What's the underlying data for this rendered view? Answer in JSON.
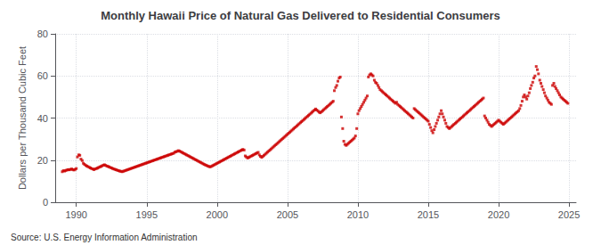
{
  "chart_data": {
    "type": "scatter",
    "title": "Monthly Hawaii Price of Natural Gas Delivered to Residential Consumers",
    "ylabel": "Dollars per Thousand Cubic Feet",
    "annotations": [
      "Source: U.S. Energy Information Administration"
    ],
    "color": "#cc0000",
    "marker": "square",
    "grid": true,
    "xlim": [
      1988.5,
      2025.5
    ],
    "xticks": [
      1990,
      1995,
      2000,
      2005,
      2010,
      2015,
      2020,
      2025
    ],
    "ylim": [
      0,
      80
    ],
    "yticks": [
      0,
      20,
      40,
      60,
      80
    ],
    "x": [
      1989.0,
      1989.08,
      1989.17,
      1989.25,
      1989.33,
      1989.42,
      1989.5,
      1989.58,
      1989.67,
      1989.75,
      1989.83,
      1989.92,
      1990.0,
      1990.08,
      1990.17,
      1990.25,
      1990.33,
      1990.42,
      1990.5,
      1990.58,
      1990.67,
      1990.75,
      1990.83,
      1990.92,
      1991.0,
      1991.08,
      1991.17,
      1991.25,
      1991.33,
      1991.42,
      1991.5,
      1991.58,
      1991.67,
      1991.75,
      1991.83,
      1991.92,
      1992.0,
      1992.08,
      1992.17,
      1992.25,
      1992.33,
      1992.42,
      1992.5,
      1992.58,
      1992.67,
      1992.75,
      1992.83,
      1992.92,
      1993.0,
      1993.08,
      1993.17,
      1993.25,
      1993.33,
      1993.42,
      1993.5,
      1993.58,
      1993.67,
      1993.75,
      1993.83,
      1993.92,
      1994.0,
      1994.08,
      1994.17,
      1994.25,
      1994.33,
      1994.42,
      1994.5,
      1994.58,
      1994.67,
      1994.75,
      1994.83,
      1994.92,
      1995.0,
      1995.08,
      1995.17,
      1995.25,
      1995.33,
      1995.42,
      1995.5,
      1995.58,
      1995.67,
      1995.75,
      1995.83,
      1995.92,
      1996.0,
      1996.08,
      1996.17,
      1996.25,
      1996.33,
      1996.42,
      1996.5,
      1996.58,
      1996.67,
      1996.75,
      1996.83,
      1996.92,
      1997.0,
      1997.08,
      1997.17,
      1997.25,
      1997.33,
      1997.42,
      1997.5,
      1997.58,
      1997.67,
      1997.75,
      1997.83,
      1997.92,
      1998.0,
      1998.08,
      1998.17,
      1998.25,
      1998.33,
      1998.42,
      1998.5,
      1998.58,
      1998.67,
      1998.75,
      1998.83,
      1998.92,
      1999.0,
      1999.08,
      1999.17,
      1999.25,
      1999.33,
      1999.42,
      1999.5,
      1999.58,
      1999.67,
      1999.75,
      1999.83,
      1999.92,
      2000.0,
      2000.08,
      2000.17,
      2000.25,
      2000.33,
      2000.42,
      2000.5,
      2000.58,
      2000.67,
      2000.75,
      2000.83,
      2000.92,
      2001.0,
      2001.08,
      2001.17,
      2001.25,
      2001.33,
      2001.42,
      2001.5,
      2001.58,
      2001.67,
      2001.75,
      2001.83,
      2001.92,
      2002.0,
      2002.08,
      2002.17,
      2002.25,
      2002.33,
      2002.42,
      2002.5,
      2002.58,
      2002.67,
      2002.75,
      2002.83,
      2002.92,
      2003.0,
      2003.08,
      2003.17,
      2003.25,
      2003.33,
      2003.42,
      2003.5,
      2003.58,
      2003.67,
      2003.75,
      2003.83,
      2003.92,
      2004.0,
      2004.08,
      2004.17,
      2004.25,
      2004.33,
      2004.42,
      2004.5,
      2004.58,
      2004.67,
      2004.75,
      2004.83,
      2004.92,
      2005.0,
      2005.08,
      2005.17,
      2005.25,
      2005.33,
      2005.42,
      2005.5,
      2005.58,
      2005.67,
      2005.75,
      2005.83,
      2005.92,
      2006.0,
      2006.08,
      2006.17,
      2006.25,
      2006.33,
      2006.42,
      2006.5,
      2006.58,
      2006.67,
      2006.75,
      2006.83,
      2006.92,
      2007.0,
      2007.08,
      2007.17,
      2007.25,
      2007.33,
      2007.42,
      2007.5,
      2007.58,
      2007.67,
      2007.75,
      2007.83,
      2007.92,
      2008.0,
      2008.08,
      2008.17,
      2008.25,
      2008.33,
      2008.42,
      2008.5,
      2008.58,
      2008.67,
      2008.75,
      2008.83,
      2008.92,
      2009.0,
      2009.08,
      2009.17,
      2009.25,
      2009.33,
      2009.42,
      2009.5,
      2009.58,
      2009.67,
      2009.75,
      2009.83,
      2009.92,
      2010.0,
      2010.08,
      2010.17,
      2010.25,
      2010.33,
      2010.42,
      2010.5,
      2010.58,
      2010.67,
      2010.75,
      2010.83,
      2010.92,
      2011.0,
      2011.08,
      2011.17,
      2011.25,
      2011.33,
      2011.42,
      2011.5,
      2011.58,
      2011.67,
      2011.75,
      2011.83,
      2011.92,
      2012.0,
      2012.08,
      2012.17,
      2012.25,
      2012.33,
      2012.42,
      2012.5,
      2012.58,
      2012.67,
      2012.75,
      2012.83,
      2012.92,
      2013.0,
      2013.08,
      2013.17,
      2013.25,
      2013.33,
      2013.42,
      2013.5,
      2013.58,
      2013.67,
      2013.75,
      2013.83,
      2013.92,
      2014.0,
      2014.08,
      2014.17,
      2014.25,
      2014.33,
      2014.42,
      2014.5,
      2014.58,
      2014.67,
      2014.75,
      2014.83,
      2014.92,
      2015.0,
      2015.08,
      2015.17,
      2015.25,
      2015.33,
      2015.42,
      2015.5,
      2015.58,
      2015.67,
      2015.75,
      2015.83,
      2015.92,
      2016.0,
      2016.08,
      2016.17,
      2016.25,
      2016.33,
      2016.42,
      2016.5,
      2016.58,
      2016.67,
      2016.75,
      2016.83,
      2016.92,
      2017.0,
      2017.08,
      2017.17,
      2017.25,
      2017.33,
      2017.42,
      2017.5,
      2017.58,
      2017.67,
      2017.75,
      2017.83,
      2017.92,
      2018.0,
      2018.08,
      2018.17,
      2018.25,
      2018.33,
      2018.42,
      2018.5,
      2018.58,
      2018.67,
      2018.75,
      2018.83,
      2018.92,
      2019.0,
      2019.08,
      2019.17,
      2019.25,
      2019.33,
      2019.42,
      2019.5,
      2019.58,
      2019.67,
      2019.75,
      2019.83,
      2019.92,
      2020.0,
      2020.08,
      2020.17,
      2020.25,
      2020.33,
      2020.42,
      2020.5,
      2020.58,
      2020.67,
      2020.75,
      2020.83,
      2020.92,
      2021.0,
      2021.08,
      2021.17,
      2021.25,
      2021.33,
      2021.42,
      2021.5,
      2021.58,
      2021.67,
      2021.75,
      2021.83,
      2021.92,
      2022.0,
      2022.08,
      2022.17,
      2022.25,
      2022.33,
      2022.42,
      2022.5,
      2022.58,
      2022.67,
      2022.75,
      2022.83,
      2022.92,
      2023.0,
      2023.08,
      2023.17,
      2023.25,
      2023.33,
      2023.42,
      2023.5,
      2023.58,
      2023.67,
      2023.75,
      2023.83,
      2023.92,
      2024.0,
      2024.08,
      2024.17,
      2024.25,
      2024.33,
      2024.42,
      2024.5,
      2024.58,
      2024.67,
      2024.75,
      2024.83,
      2024.92
    ],
    "values": [
      14.5,
      15.0,
      14.8,
      15.1,
      15.3,
      15.5,
      15.4,
      15.6,
      15.8,
      15.5,
      15.3,
      15.6,
      16.0,
      21.5,
      22.5,
      22.3,
      20.5,
      19.8,
      18.5,
      18.0,
      17.5,
      17.2,
      16.9,
      16.6,
      16.3,
      16.0,
      15.8,
      15.5,
      15.8,
      16.0,
      16.2,
      16.5,
      16.8,
      17.0,
      17.3,
      17.6,
      17.8,
      17.5,
      17.2,
      17.0,
      16.8,
      16.5,
      16.3,
      16.0,
      15.8,
      15.6,
      15.4,
      15.2,
      15.0,
      14.8,
      14.7,
      14.5,
      14.7,
      14.9,
      15.1,
      15.3,
      15.5,
      15.7,
      15.9,
      16.1,
      16.3,
      16.5,
      16.7,
      16.9,
      17.1,
      17.3,
      17.5,
      17.7,
      17.9,
      18.1,
      18.3,
      18.5,
      18.7,
      18.9,
      19.1,
      19.3,
      19.5,
      19.7,
      19.9,
      20.1,
      20.3,
      20.5,
      20.7,
      20.9,
      21.1,
      21.3,
      21.5,
      21.7,
      21.9,
      22.1,
      22.3,
      22.5,
      22.7,
      22.9,
      23.1,
      23.3,
      23.8,
      24.0,
      24.2,
      24.5,
      24.3,
      24.0,
      23.7,
      23.4,
      23.1,
      22.8,
      22.5,
      22.2,
      21.9,
      21.6,
      21.3,
      21.0,
      20.7,
      20.4,
      20.1,
      19.8,
      19.5,
      19.2,
      18.9,
      18.6,
      18.3,
      18.0,
      17.7,
      17.5,
      17.2,
      17.0,
      16.8,
      17.0,
      17.3,
      17.6,
      17.9,
      18.2,
      18.5,
      18.8,
      19.1,
      19.4,
      19.7,
      20.0,
      20.3,
      20.6,
      20.9,
      21.2,
      21.5,
      21.8,
      22.1,
      22.4,
      22.7,
      23.0,
      23.3,
      23.6,
      23.9,
      24.2,
      24.5,
      24.8,
      25.1,
      24.8,
      22.0,
      21.5,
      21.0,
      21.3,
      21.6,
      21.9,
      22.2,
      22.5,
      22.8,
      23.1,
      23.4,
      23.7,
      22.5,
      21.8,
      21.3,
      21.8,
      22.3,
      22.8,
      23.3,
      23.8,
      24.3,
      24.8,
      25.3,
      25.8,
      26.3,
      26.8,
      27.3,
      27.8,
      28.3,
      28.8,
      29.3,
      29.8,
      30.3,
      30.8,
      31.3,
      31.8,
      32.3,
      32.8,
      33.3,
      33.8,
      34.3,
      34.8,
      35.3,
      35.8,
      36.3,
      36.8,
      37.3,
      37.8,
      38.3,
      38.8,
      39.3,
      39.8,
      40.3,
      40.8,
      41.3,
      41.8,
      42.3,
      42.8,
      43.3,
      43.8,
      44.3,
      43.8,
      43.3,
      42.8,
      42.5,
      43.0,
      43.5,
      44.0,
      44.5,
      45.0,
      45.5,
      46.0,
      46.5,
      47.0,
      47.5,
      48.0,
      53.0,
      54.5,
      55.5,
      57.5,
      59.0,
      59.5,
      40.5,
      35.0,
      29.0,
      27.5,
      27.0,
      27.5,
      28.0,
      28.5,
      29.0,
      29.5,
      30.0,
      30.5,
      31.5,
      35.0,
      42.0,
      43.5,
      44.5,
      45.5,
      46.5,
      47.5,
      48.5,
      49.5,
      50.5,
      59.5,
      60.5,
      61.0,
      60.5,
      60.0,
      58.0,
      57.0,
      56.5,
      55.5,
      54.5,
      53.5,
      53.0,
      52.5,
      52.0,
      51.5,
      51.0,
      50.5,
      50.0,
      49.5,
      49.0,
      48.5,
      48.0,
      47.5,
      47.0,
      47.5,
      46.5,
      46.0,
      45.5,
      45.0,
      44.5,
      44.0,
      43.5,
      43.0,
      42.5,
      42.0,
      41.5,
      41.0,
      40.5,
      40.0,
      44.5,
      44.0,
      43.5,
      43.0,
      42.5,
      42.0,
      41.5,
      41.0,
      40.5,
      40.0,
      39.5,
      39.0,
      38.5,
      37.0,
      35.5,
      34.0,
      33.0,
      34.5,
      36.0,
      37.5,
      39.0,
      40.5,
      42.0,
      43.5,
      42.0,
      40.5,
      39.0,
      37.5,
      36.0,
      35.5,
      35.0,
      35.5,
      36.0,
      36.5,
      37.0,
      37.5,
      38.0,
      38.5,
      39.0,
      39.5,
      40.0,
      40.5,
      41.0,
      41.5,
      42.0,
      42.5,
      43.0,
      43.5,
      44.0,
      44.5,
      45.0,
      45.5,
      46.0,
      46.5,
      47.0,
      47.5,
      48.0,
      48.5,
      49.0,
      49.5,
      41.0,
      40.0,
      39.0,
      38.0,
      37.0,
      36.5,
      36.0,
      36.5,
      37.0,
      37.5,
      38.0,
      38.5,
      39.0,
      38.5,
      38.0,
      37.5,
      37.0,
      37.5,
      38.0,
      38.5,
      39.0,
      39.5,
      40.0,
      40.5,
      41.0,
      41.5,
      42.0,
      42.5,
      43.0,
      43.5,
      44.5,
      46.0,
      48.0,
      50.0,
      51.0,
      50.0,
      49.0,
      50.5,
      52.0,
      54.0,
      55.5,
      57.0,
      59.0,
      60.0,
      64.5,
      63.0,
      61.0,
      58.0,
      56.5,
      55.0,
      53.5,
      52.0,
      50.5,
      49.5,
      48.5,
      47.5,
      47.0,
      46.5,
      55.5,
      56.5,
      55.0,
      54.0,
      53.0,
      52.0,
      51.0,
      50.0,
      49.5,
      49.0,
      48.5,
      48.0,
      47.5,
      47.0
    ]
  }
}
